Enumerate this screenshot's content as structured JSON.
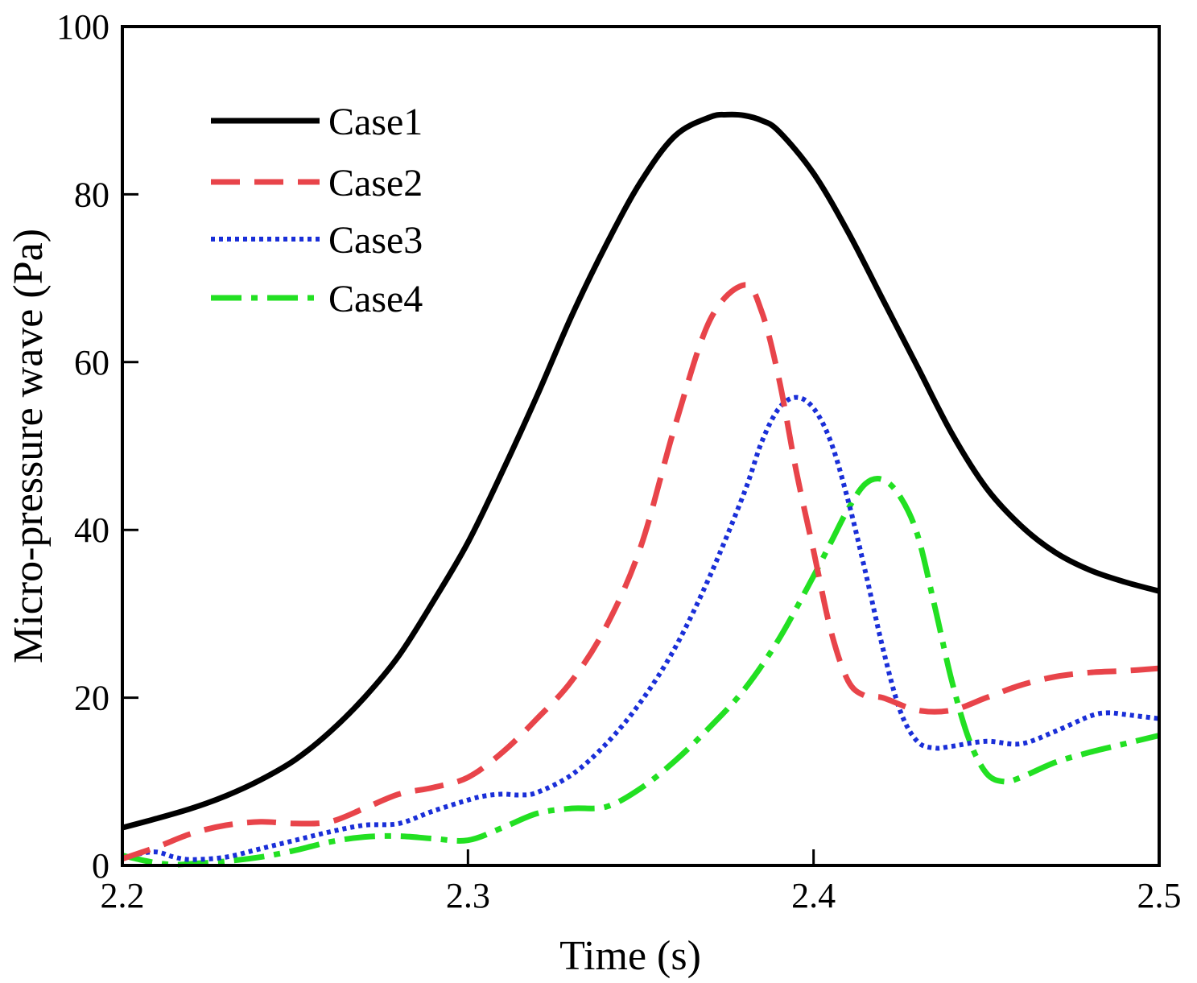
{
  "chart_data": {
    "type": "line",
    "title": "",
    "xlabel": "Time (s)",
    "ylabel": "Micro-pressure wave (Pa)",
    "xlim": [
      2.2,
      2.5
    ],
    "ylim": [
      0,
      100
    ],
    "grid": false,
    "x_ticks": [
      2.2,
      2.3,
      2.4,
      2.5
    ],
    "x_tick_labels": [
      "2.2",
      "2.3",
      "2.4",
      "2.5"
    ],
    "y_ticks": [
      0,
      20,
      40,
      60,
      80,
      100
    ],
    "y_tick_labels": [
      "0",
      "20",
      "40",
      "60",
      "80",
      "100"
    ],
    "legend_position": "top-left",
    "series": [
      {
        "name": "Case1",
        "color": "#000000",
        "style": "solid",
        "x": [
          2.2,
          2.21,
          2.22,
          2.23,
          2.24,
          2.25,
          2.26,
          2.27,
          2.28,
          2.29,
          2.3,
          2.31,
          2.32,
          2.33,
          2.34,
          2.35,
          2.36,
          2.37,
          2.375,
          2.38,
          2.385,
          2.39,
          2.4,
          2.41,
          2.42,
          2.43,
          2.44,
          2.45,
          2.46,
          2.47,
          2.48,
          2.49,
          2.5
        ],
        "y": [
          4.5,
          5.6,
          6.8,
          8.3,
          10.2,
          12.6,
          15.9,
          20.0,
          25.0,
          31.5,
          38.5,
          47.0,
          56.0,
          65.5,
          74.0,
          81.5,
          87.0,
          89.2,
          89.5,
          89.4,
          88.8,
          87.5,
          82.5,
          75.5,
          67.5,
          59.5,
          51.5,
          45.0,
          40.5,
          37.3,
          35.2,
          33.8,
          32.7
        ]
      },
      {
        "name": "Case2",
        "color": "#e8444a",
        "style": "dashed",
        "x": [
          2.2,
          2.21,
          2.22,
          2.23,
          2.24,
          2.25,
          2.26,
          2.27,
          2.28,
          2.29,
          2.3,
          2.31,
          2.32,
          2.33,
          2.34,
          2.35,
          2.36,
          2.37,
          2.38,
          2.385,
          2.39,
          2.395,
          2.4,
          2.405,
          2.41,
          2.415,
          2.42,
          2.43,
          2.44,
          2.45,
          2.46,
          2.47,
          2.48,
          2.49,
          2.5
        ],
        "y": [
          0.8,
          2.2,
          3.8,
          4.8,
          5.2,
          5.0,
          5.2,
          6.8,
          8.5,
          9.3,
          10.5,
          13.5,
          17.5,
          22.0,
          28.5,
          38.0,
          52.5,
          65.0,
          69.2,
          66.0,
          58.0,
          47.0,
          37.5,
          28.0,
          22.0,
          20.2,
          20.0,
          18.5,
          18.5,
          20.0,
          21.5,
          22.5,
          23.0,
          23.2,
          23.5
        ]
      },
      {
        "name": "Case3",
        "color": "#1a2fd8",
        "style": "dotted",
        "x": [
          2.2,
          2.205,
          2.21,
          2.215,
          2.22,
          2.23,
          2.24,
          2.25,
          2.26,
          2.27,
          2.28,
          2.29,
          2.3,
          2.305,
          2.31,
          2.315,
          2.32,
          2.33,
          2.34,
          2.35,
          2.36,
          2.37,
          2.38,
          2.385,
          2.39,
          2.395,
          2.4,
          2.405,
          2.41,
          2.415,
          2.42,
          2.425,
          2.43,
          2.435,
          2.44,
          2.45,
          2.46,
          2.47,
          2.48,
          2.485,
          2.49,
          2.5
        ],
        "y": [
          0.8,
          1.4,
          1.6,
          1.0,
          0.7,
          1.0,
          2.0,
          3.0,
          4.0,
          4.8,
          5.0,
          6.5,
          7.8,
          8.3,
          8.5,
          8.4,
          8.7,
          10.8,
          14.5,
          19.5,
          26.0,
          34.5,
          44.5,
          50.5,
          54.5,
          55.8,
          54.5,
          50.5,
          43.5,
          35.0,
          26.0,
          18.5,
          14.8,
          14.0,
          14.2,
          14.8,
          14.5,
          16.0,
          17.8,
          18.2,
          18.0,
          17.5
        ]
      },
      {
        "name": "Case4",
        "color": "#22e022",
        "style": "dashdot",
        "x": [
          2.2,
          2.205,
          2.21,
          2.215,
          2.22,
          2.23,
          2.24,
          2.25,
          2.26,
          2.27,
          2.28,
          2.29,
          2.3,
          2.31,
          2.32,
          2.33,
          2.34,
          2.35,
          2.36,
          2.37,
          2.38,
          2.39,
          2.4,
          2.405,
          2.41,
          2.415,
          2.42,
          2.425,
          2.43,
          2.435,
          2.44,
          2.445,
          2.45,
          2.455,
          2.46,
          2.47,
          2.48,
          2.49,
          2.5
        ],
        "y": [
          1.2,
          0.7,
          0.3,
          0.1,
          0.2,
          0.5,
          1.0,
          1.8,
          2.8,
          3.4,
          3.5,
          3.2,
          3.0,
          4.5,
          6.2,
          6.8,
          7.0,
          9.2,
          12.5,
          16.5,
          21.0,
          27.0,
          34.5,
          38.5,
          42.5,
          45.5,
          46.0,
          44.0,
          39.5,
          31.0,
          22.0,
          15.0,
          11.0,
          10.0,
          10.5,
          12.3,
          13.5,
          14.5,
          15.5
        ]
      }
    ]
  }
}
